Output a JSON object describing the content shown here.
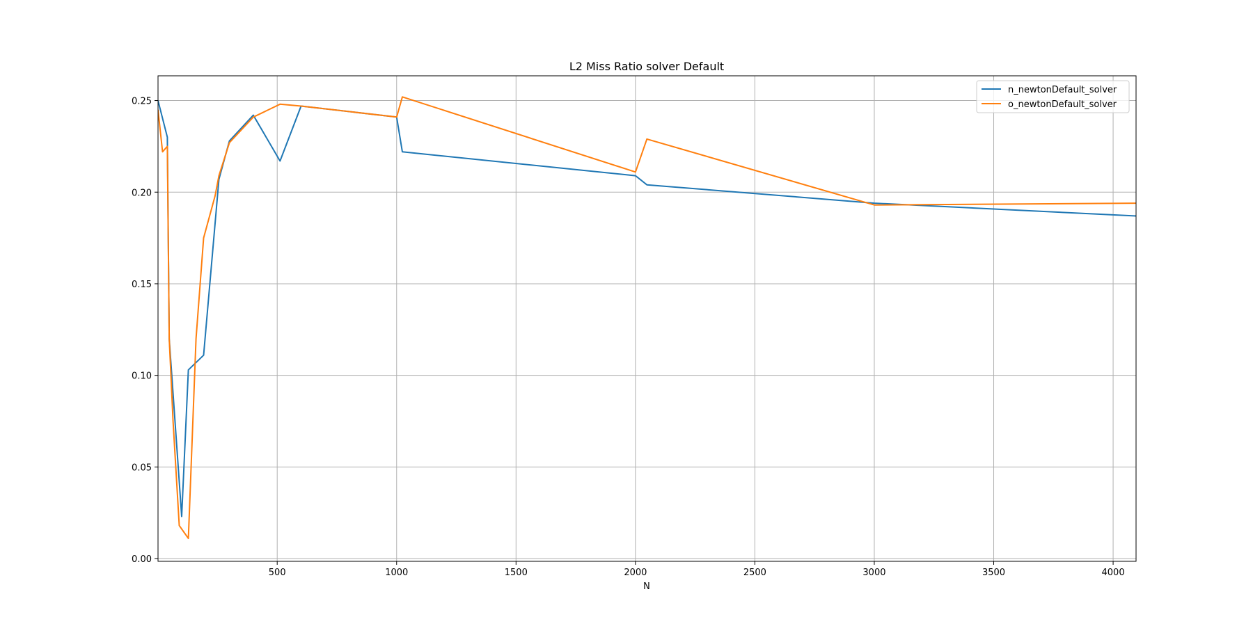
{
  "chart_data": {
    "type": "line",
    "title": "L2 Miss Ratio solver Default",
    "xlabel": "N",
    "ylabel": "",
    "xlim": [
      1,
      4096
    ],
    "ylim": [
      -0.0015,
      0.2635
    ],
    "xticks": [
      500,
      1000,
      1500,
      2000,
      2500,
      3000,
      3500,
      4000
    ],
    "yticks": [
      0.0,
      0.05,
      0.1,
      0.15,
      0.2,
      0.25
    ],
    "xtick_labels": [
      "500",
      "1000",
      "1500",
      "2000",
      "2500",
      "3000",
      "3500",
      "4000"
    ],
    "ytick_labels": [
      "0.00",
      "0.05",
      "0.10",
      "0.15",
      "0.20",
      "0.25"
    ],
    "grid": true,
    "legend_position": "top-right",
    "series": [
      {
        "name": "n_newtonDefault_solver",
        "color": "#1f77b4",
        "x": [
          1,
          40,
          48,
          100,
          128,
          192,
          256,
          300,
          400,
          512,
          600,
          1000,
          1024,
          2000,
          2048,
          3000,
          4096
        ],
        "y": [
          0.25,
          0.23,
          0.12,
          0.023,
          0.103,
          0.111,
          0.207,
          0.228,
          0.242,
          0.217,
          0.247,
          0.241,
          0.222,
          0.209,
          0.204,
          0.194,
          0.187
        ]
      },
      {
        "name": "o_newtonDefault_solver",
        "color": "#ff7f0e",
        "x": [
          1,
          20,
          40,
          48,
          64,
          90,
          128,
          160,
          192,
          240,
          256,
          300,
          400,
          512,
          600,
          1000,
          1024,
          2000,
          2048,
          3000,
          4096
        ],
        "y": [
          0.245,
          0.222,
          0.225,
          0.12,
          0.075,
          0.018,
          0.011,
          0.12,
          0.175,
          0.198,
          0.209,
          0.227,
          0.241,
          0.248,
          0.247,
          0.241,
          0.252,
          0.211,
          0.229,
          0.193,
          0.194
        ]
      }
    ]
  }
}
